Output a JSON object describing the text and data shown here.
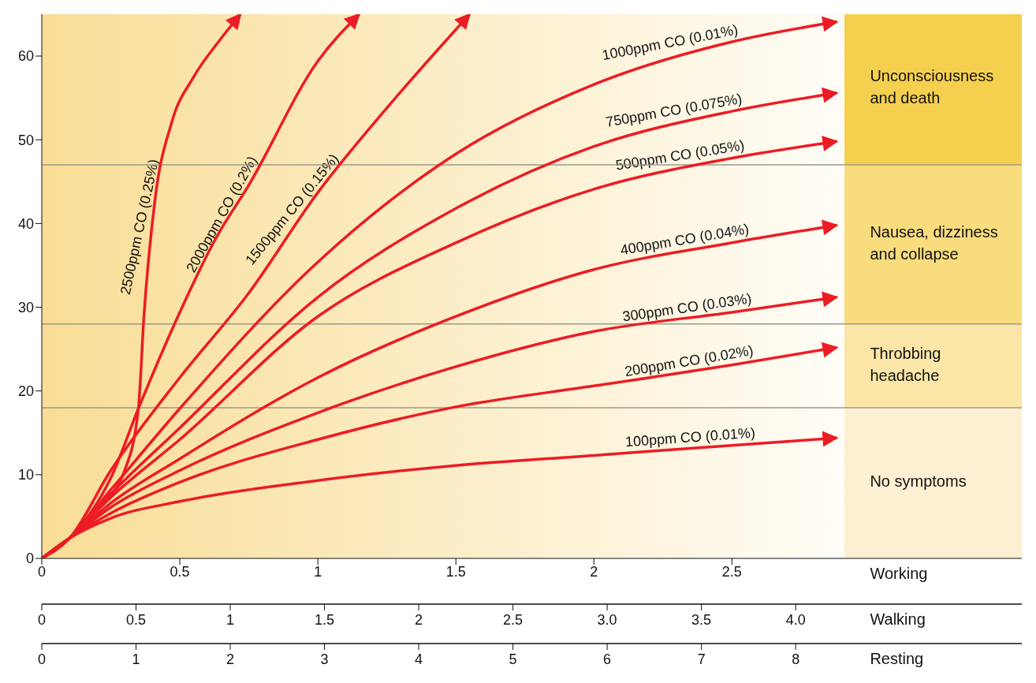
{
  "chart_data": {
    "type": "line",
    "legend": false,
    "grid": false,
    "xlim": [
      0,
      3.55
    ],
    "xticks": [
      0,
      0.5,
      1,
      1.5,
      2,
      2.5
    ],
    "xlabel": "Working",
    "x2lim": [
      0,
      5.2
    ],
    "x2ticks": [
      0,
      0.5,
      1,
      1.5,
      2,
      2.5,
      {
        "value": 3,
        "label": "3.0"
      },
      3.5,
      {
        "value": 4,
        "label": "4.0"
      }
    ],
    "x2label": "Walking",
    "ylim": [
      0,
      65
    ],
    "yticks": [
      0,
      10,
      20,
      30,
      40,
      50,
      60
    ],
    "series": [
      {
        "name": "2500ppm CO (0.25%)",
        "color": "#ec1c24",
        "x": [
          0,
          0.1,
          0.2,
          0.3,
          0.35,
          0.37,
          0.41,
          0.47,
          0.55,
          0.64,
          0.72
        ],
        "values": [
          0,
          2.4,
          5.9,
          10.5,
          17.9,
          28.9,
          42.8,
          52,
          57.5,
          61.7,
          65
        ]
      },
      {
        "name": "2000ppm CO (0.2%)",
        "color": "#ec1c24",
        "x": [
          0,
          0.1,
          0.25,
          0.35,
          0.5,
          0.63,
          0.75,
          1,
          1.15
        ],
        "values": [
          0,
          2.4,
          9.6,
          17.9,
          29.4,
          38.2,
          44.6,
          59.4,
          65
        ]
      },
      {
        "name": "1500ppm CO (0.15%)",
        "color": "#ec1c24",
        "x": [
          0,
          0.1,
          0.25,
          0.5,
          0.75,
          1,
          1.25,
          1.55
        ],
        "values": [
          0,
          2.4,
          10.5,
          21.6,
          31.7,
          43.7,
          53.8,
          65
        ]
      },
      {
        "name": "1000ppm CO (0.01%)",
        "color": "#ec1c24",
        "x": [
          0,
          0.1,
          0.25,
          0.5,
          1,
          1.5,
          2,
          2.5,
          2.88
        ],
        "values": [
          0,
          2.4,
          8.2,
          17.9,
          35.4,
          48.3,
          56.6,
          61.7,
          64.1
        ]
      },
      {
        "name": "750ppm CO (0.075%)",
        "color": "#ec1c24",
        "x": [
          0,
          0.1,
          0.25,
          0.5,
          1,
          1.5,
          2,
          2.5,
          2.88
        ],
        "values": [
          0,
          2.4,
          7.7,
          15.6,
          31.2,
          41.8,
          49.2,
          53.4,
          55.6
        ]
      },
      {
        "name": "500ppm CO (0.05%)",
        "color": "#ec1c24",
        "x": [
          0,
          0.1,
          0.25,
          0.5,
          1,
          1.5,
          2,
          2.5,
          2.88
        ],
        "values": [
          0,
          2.4,
          7.3,
          14.2,
          28.9,
          37.7,
          44.1,
          47.8,
          49.8
        ]
      },
      {
        "name": "400ppm CO (0.04%)",
        "color": "#ec1c24",
        "x": [
          0,
          0.1,
          0.25,
          0.5,
          1,
          1.5,
          2,
          2.5,
          2.88
        ],
        "values": [
          0,
          2.4,
          6.6,
          11.9,
          21.6,
          28.9,
          34.5,
          37.7,
          39.8
        ]
      },
      {
        "name": "300ppm CO (0.03%)",
        "color": "#ec1c24",
        "x": [
          0,
          0.1,
          0.25,
          0.5,
          1,
          1.5,
          2,
          2.5,
          2.88
        ],
        "values": [
          0,
          2.4,
          6.1,
          10.5,
          17.4,
          22.9,
          27.1,
          29.4,
          31.2
        ]
      },
      {
        "name": "200ppm CO (0.02%)",
        "color": "#ec1c24",
        "x": [
          0,
          0.1,
          0.25,
          0.5,
          1,
          1.5,
          2,
          2.5,
          2.88
        ],
        "values": [
          0,
          2.4,
          5.4,
          9.1,
          14.2,
          18.1,
          20.6,
          23.1,
          25.2
        ]
      },
      {
        "name": "100ppm CO (0.01%)",
        "color": "#ec1c24",
        "x": [
          0,
          0.1,
          0.25,
          0.5,
          1,
          1.5,
          2,
          2.5,
          2.88
        ],
        "values": [
          0,
          2.4,
          4.8,
          6.8,
          9.3,
          11.1,
          12.3,
          13.5,
          14.4
        ]
      }
    ],
    "bands": [
      {
        "axis": "y",
        "from": 0,
        "to": 18,
        "label": "No symptoms",
        "color": "#fdf0d2"
      },
      {
        "axis": "y",
        "from": 18,
        "to": 28,
        "label": "Throbbing headache",
        "color": "#fbe6a8"
      },
      {
        "axis": "y",
        "from": 28,
        "to": 47,
        "label": "Nausea, dizziness and collapse",
        "color": "#f8dc7e"
      },
      {
        "axis": "y",
        "from": 47,
        "to": 65,
        "label": "Unconsciousness and death",
        "color": "#f5d04e"
      }
    ],
    "annotations": [
      "Resting",
      "0",
      "1",
      "2",
      "3",
      "4",
      "5",
      "6",
      "7",
      "8"
    ]
  }
}
